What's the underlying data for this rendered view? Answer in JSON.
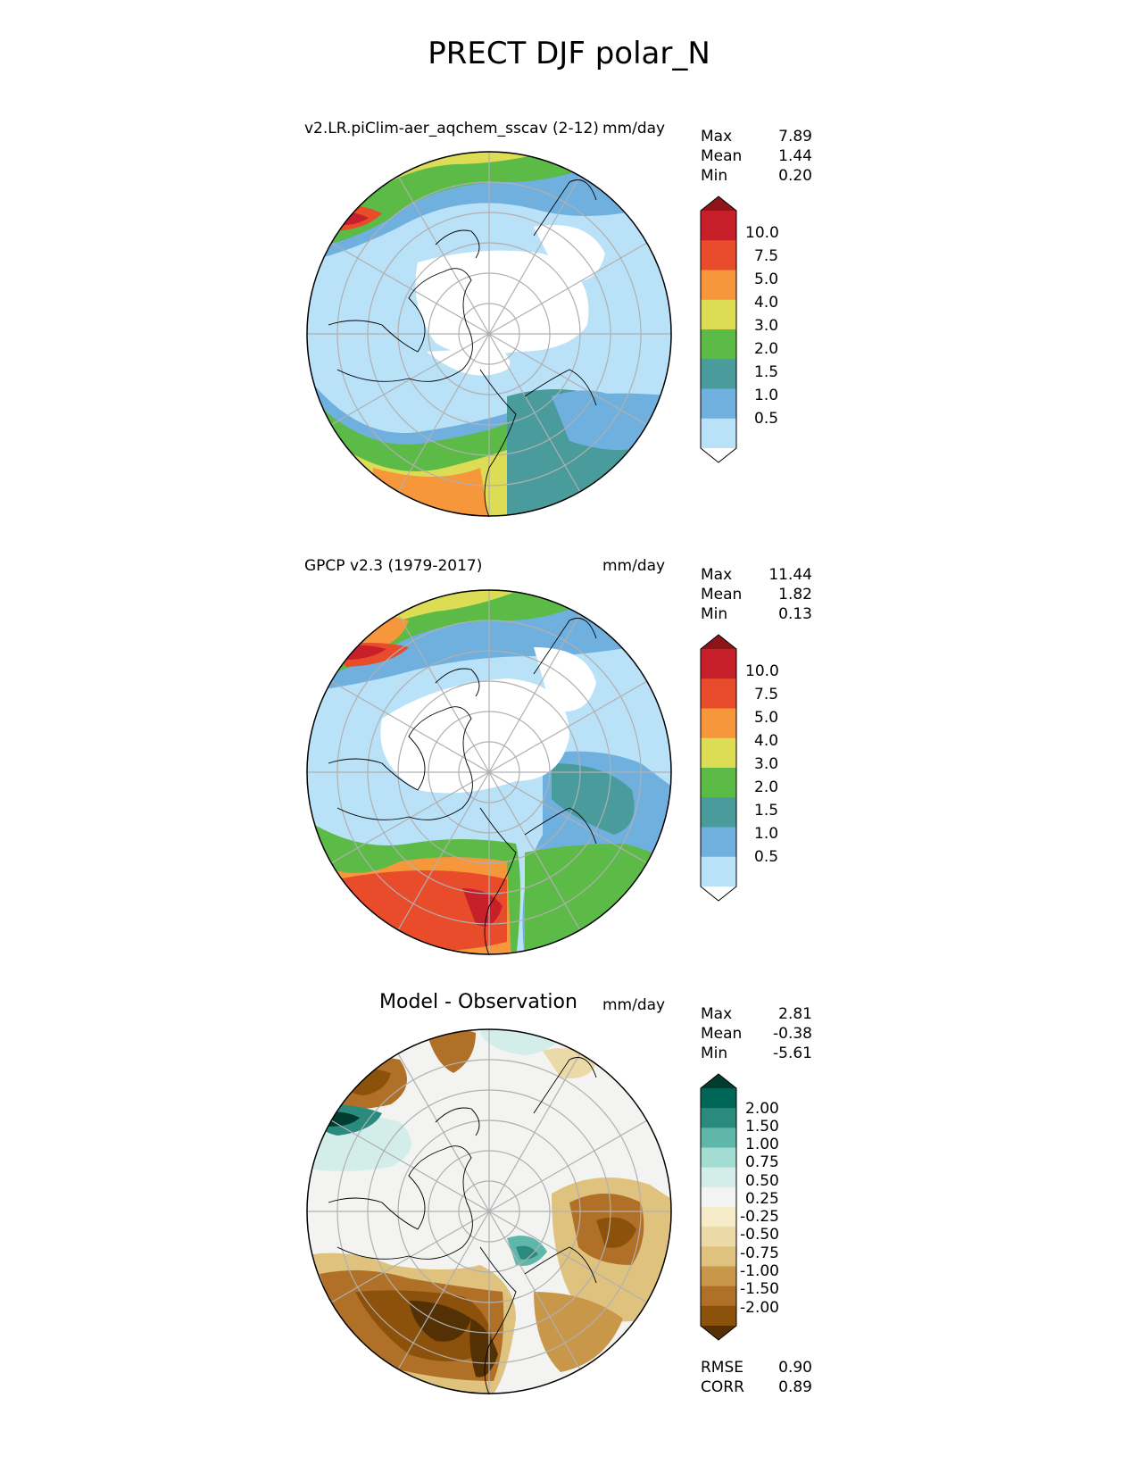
{
  "title": "PRECT DJF polar_N",
  "panels": [
    {
      "name": "model",
      "title": "v2.LR.piClim-aer_aqchem_sscav (2-12)",
      "units": "mm/day",
      "stats": [
        {
          "label": "Max",
          "value": "7.89"
        },
        {
          "label": "Mean",
          "value": "1.44"
        },
        {
          "label": "Min",
          "value": "0.20"
        }
      ],
      "colorbar": {
        "labels": [
          "10.0",
          "7.5",
          "5.0",
          "4.0",
          "3.0",
          "2.0",
          "1.5",
          "1.0",
          "0.5"
        ],
        "colors": [
          "#ffffff",
          "#b9e1f7",
          "#6fb0de",
          "#4a9b9b",
          "#5cba47",
          "#dddd55",
          "#f5973a",
          "#e84c2b",
          "#c8202a",
          "#8e1419"
        ]
      }
    },
    {
      "name": "observation",
      "title": "GPCP v2.3 (1979-2017)",
      "units": "mm/day",
      "stats": [
        {
          "label": "Max",
          "value": "11.44"
        },
        {
          "label": "Mean",
          "value": "1.82"
        },
        {
          "label": "Min",
          "value": "0.13"
        }
      ],
      "colorbar": {
        "labels": [
          "10.0",
          "7.5",
          "5.0",
          "4.0",
          "3.0",
          "2.0",
          "1.5",
          "1.0",
          "0.5"
        ],
        "colors": [
          "#ffffff",
          "#b9e1f7",
          "#6fb0de",
          "#4a9b9b",
          "#5cba47",
          "#dddd55",
          "#f5973a",
          "#e84c2b",
          "#c8202a",
          "#8e1419"
        ]
      }
    },
    {
      "name": "difference",
      "title": "Model - Observation",
      "units": "mm/day",
      "stats": [
        {
          "label": "Max",
          "value": "2.81"
        },
        {
          "label": "Mean",
          "value": "-0.38"
        },
        {
          "label": "Min",
          "value": "-5.61"
        }
      ],
      "colorbar": {
        "labels": [
          "2.00",
          "1.50",
          "1.00",
          "0.75",
          "0.50",
          "0.25",
          "-0.25",
          "-0.50",
          "-0.75",
          "-1.00",
          "-1.50",
          "-2.00"
        ],
        "colors": [
          "#543005",
          "#8c510a",
          "#b07028",
          "#c9974a",
          "#dfc27d",
          "#ebd9a8",
          "#f6ebc8",
          "#f3f3f1",
          "#d3ede9",
          "#a3dcd2",
          "#5fb7aa",
          "#2a8a7e",
          "#006658",
          "#003c30"
        ]
      },
      "metrics": [
        {
          "label": "RMSE",
          "value": "0.90"
        },
        {
          "label": "CORR",
          "value": "0.89"
        }
      ]
    }
  ]
}
